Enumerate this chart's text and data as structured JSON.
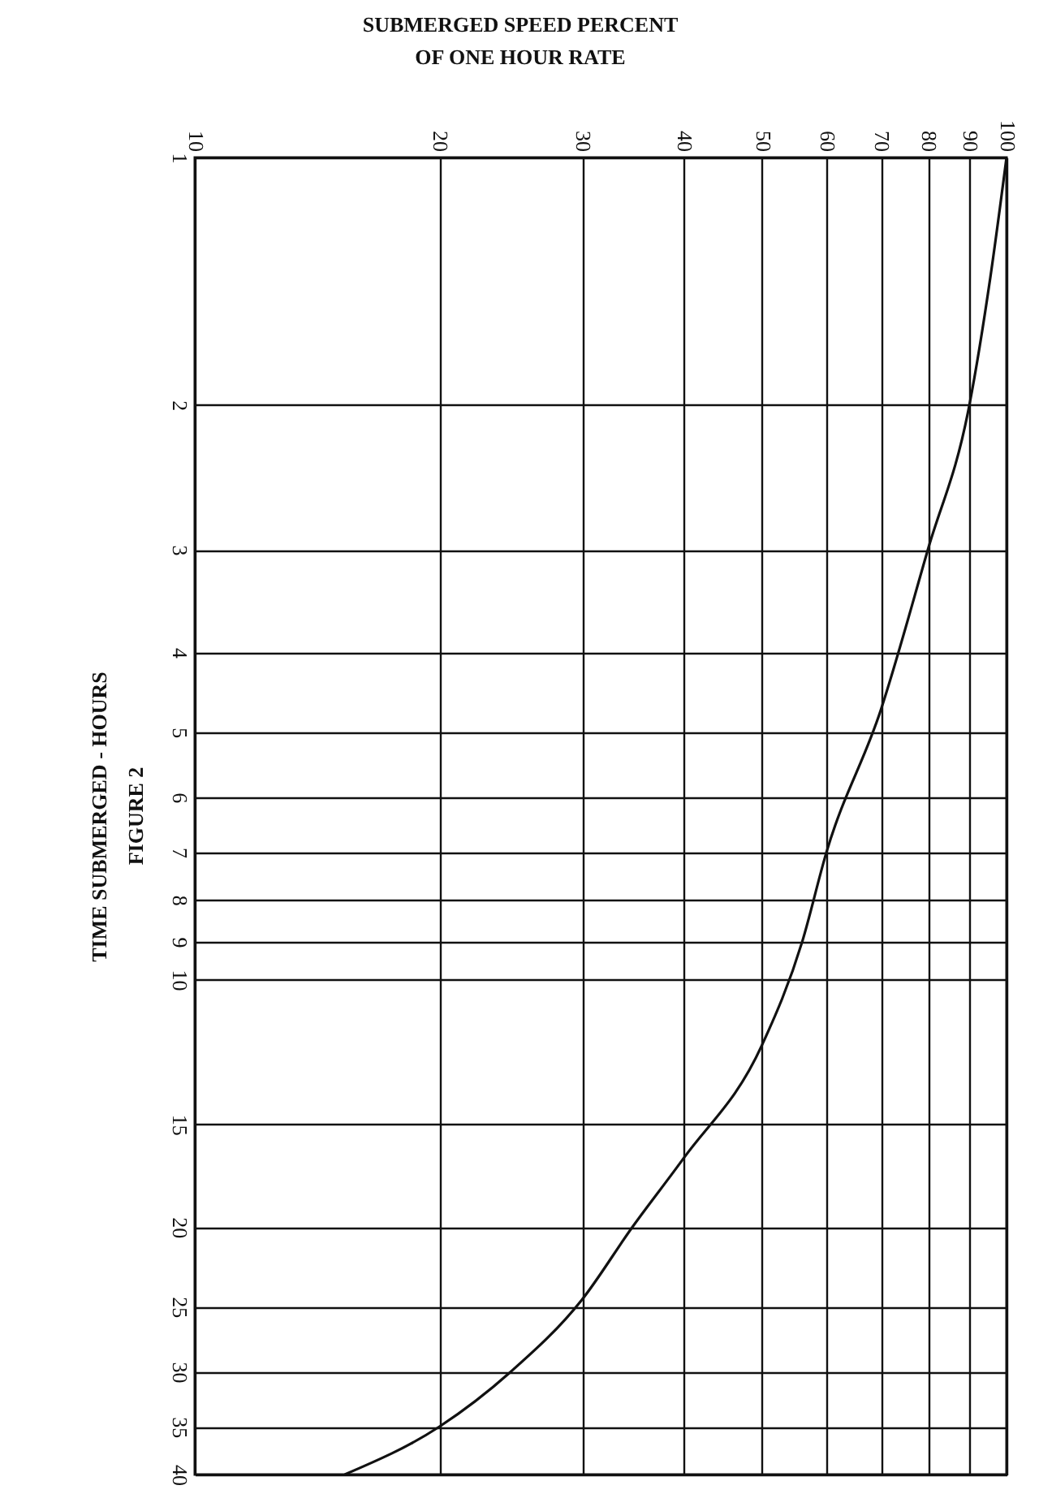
{
  "chart_data": {
    "type": "line",
    "xlabel": "SUBMERGED SPEED PERCENT\nOF ONE HOUR RATE",
    "ylabel": "TIME SUBMERGED - HOURS",
    "annotations": [
      "FIGURE 2"
    ],
    "x": [
      100,
      95.5,
      90,
      80,
      70,
      60,
      56,
      50,
      40,
      34.6,
      30,
      24.5,
      20,
      15.3
    ],
    "series": [
      {
        "color": "#111111",
        "values": [
          1,
          1.4,
          2,
          3,
          4.7,
          7,
          9,
          12,
          16.5,
          20,
          24.5,
          30,
          35,
          40
        ]
      }
    ],
    "xlim": [
      10,
      100
    ],
    "ylim": [
      40,
      1
    ],
    "xticks": [
      10,
      20,
      30,
      40,
      50,
      60,
      70,
      80,
      90,
      100
    ],
    "yticks": [
      1,
      2,
      3,
      4,
      5,
      6,
      7,
      8,
      9,
      10,
      15,
      20,
      25,
      30,
      35,
      40
    ],
    "log": "xy",
    "grid": true,
    "marker": "none",
    "line_style": "solid"
  }
}
